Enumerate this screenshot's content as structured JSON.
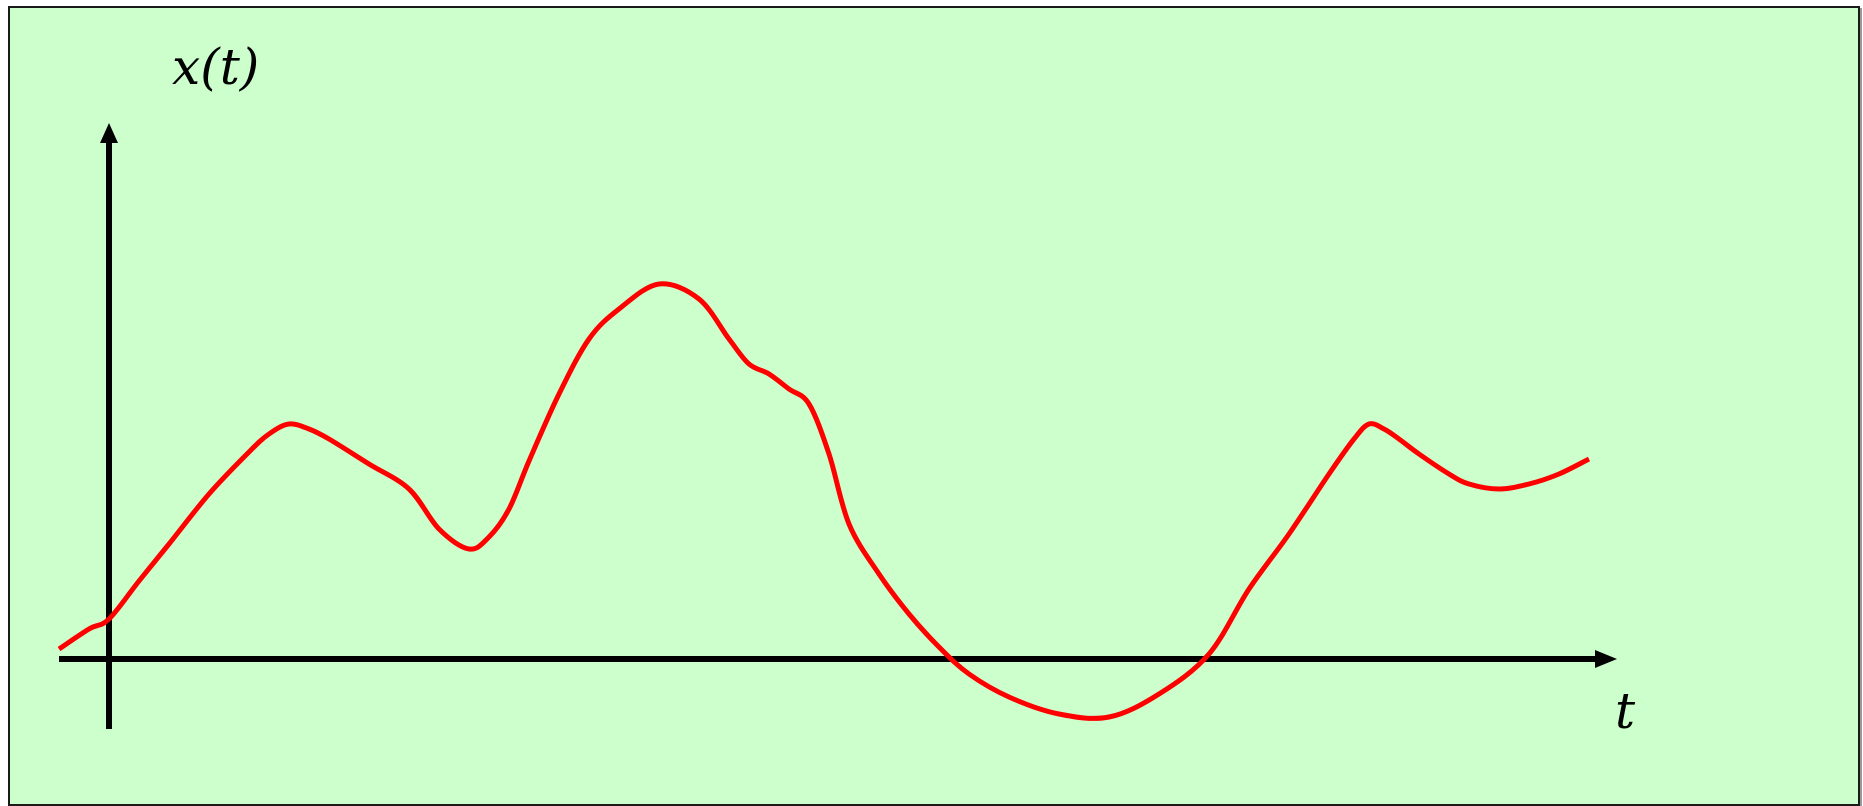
{
  "chart_data": {
    "type": "line",
    "title": "",
    "xlabel": "t",
    "ylabel": "x(t)",
    "xlim": [
      -0.5,
      15
    ],
    "ylim": [
      -0.7,
      5.3
    ],
    "grid": false,
    "legend": "none",
    "series": [
      {
        "color": "#ff0000",
        "x": [
          -0.5,
          -0.2,
          0.0,
          0.3,
          0.6,
          1.0,
          1.4,
          1.6,
          1.8,
          2.0,
          2.2,
          2.6,
          3.0,
          3.3,
          3.6,
          3.8,
          4.0,
          4.2,
          4.5,
          4.8,
          5.1,
          5.5,
          5.9,
          6.2,
          6.4,
          6.6,
          6.8,
          7.0,
          7.2,
          7.4,
          7.7,
          8.0,
          8.3,
          8.6,
          9.0,
          9.5,
          10.0,
          10.5,
          11.0,
          11.4,
          11.8,
          12.2,
          12.45,
          12.6,
          12.75,
          12.9,
          13.1,
          13.4,
          13.6,
          13.9,
          14.2,
          14.5,
          14.8
        ],
        "values": [
          0.1,
          0.3,
          0.4,
          0.78,
          1.15,
          1.65,
          2.07,
          2.25,
          2.35,
          2.3,
          2.2,
          1.95,
          1.7,
          1.3,
          1.1,
          1.22,
          1.5,
          1.98,
          2.65,
          3.2,
          3.5,
          3.75,
          3.6,
          3.2,
          2.95,
          2.85,
          2.7,
          2.55,
          2.05,
          1.35,
          0.85,
          0.45,
          0.12,
          -0.15,
          -0.38,
          -0.55,
          -0.58,
          -0.35,
          0.05,
          0.7,
          1.25,
          1.85,
          2.2,
          2.35,
          2.3,
          2.2,
          2.05,
          1.85,
          1.75,
          1.7,
          1.75,
          1.85,
          2.0
        ]
      }
    ]
  },
  "colors": {
    "background": "#ccffcc",
    "axis": "#000000",
    "curve": "#ff0000",
    "border": "#1a1a1a"
  }
}
